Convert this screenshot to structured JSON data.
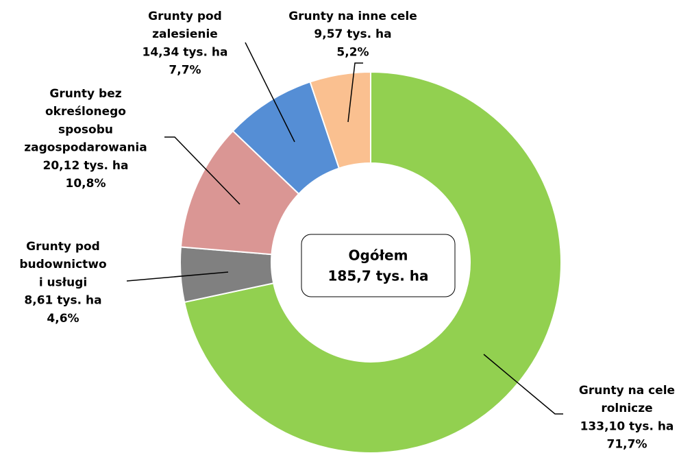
{
  "chart_data": {
    "type": "donut",
    "categories": [
      [
        "Grunty na cele",
        "rolnicze"
      ],
      [
        "Grunty pod",
        "budownictwo",
        "i usługi"
      ],
      [
        "Grunty bez",
        "określonego",
        "sposobu",
        "zagospodarowania"
      ],
      [
        "Grunty pod",
        "zalesienie"
      ],
      [
        "Grunty na inne cele"
      ]
    ],
    "values": [
      133.1,
      8.61,
      20.12,
      14.34,
      9.57
    ],
    "value_labels": [
      "133,10 tys. ha",
      "8,61 tys. ha",
      "20,12 tys. ha",
      "14,34 tys. ha",
      "9,57 tys. ha"
    ],
    "percentages": [
      71.7,
      4.6,
      10.8,
      7.7,
      5.2
    ],
    "percentage_labels": [
      "71,7%",
      "4,6%",
      "10,8%",
      "7,7%",
      "5,2%"
    ],
    "colors": [
      "#92d050",
      "#808080",
      "#da9694",
      "#558ed5",
      "#fac090"
    ],
    "annotations": [
      "Ogółem",
      "185,7 tys. ha"
    ]
  }
}
